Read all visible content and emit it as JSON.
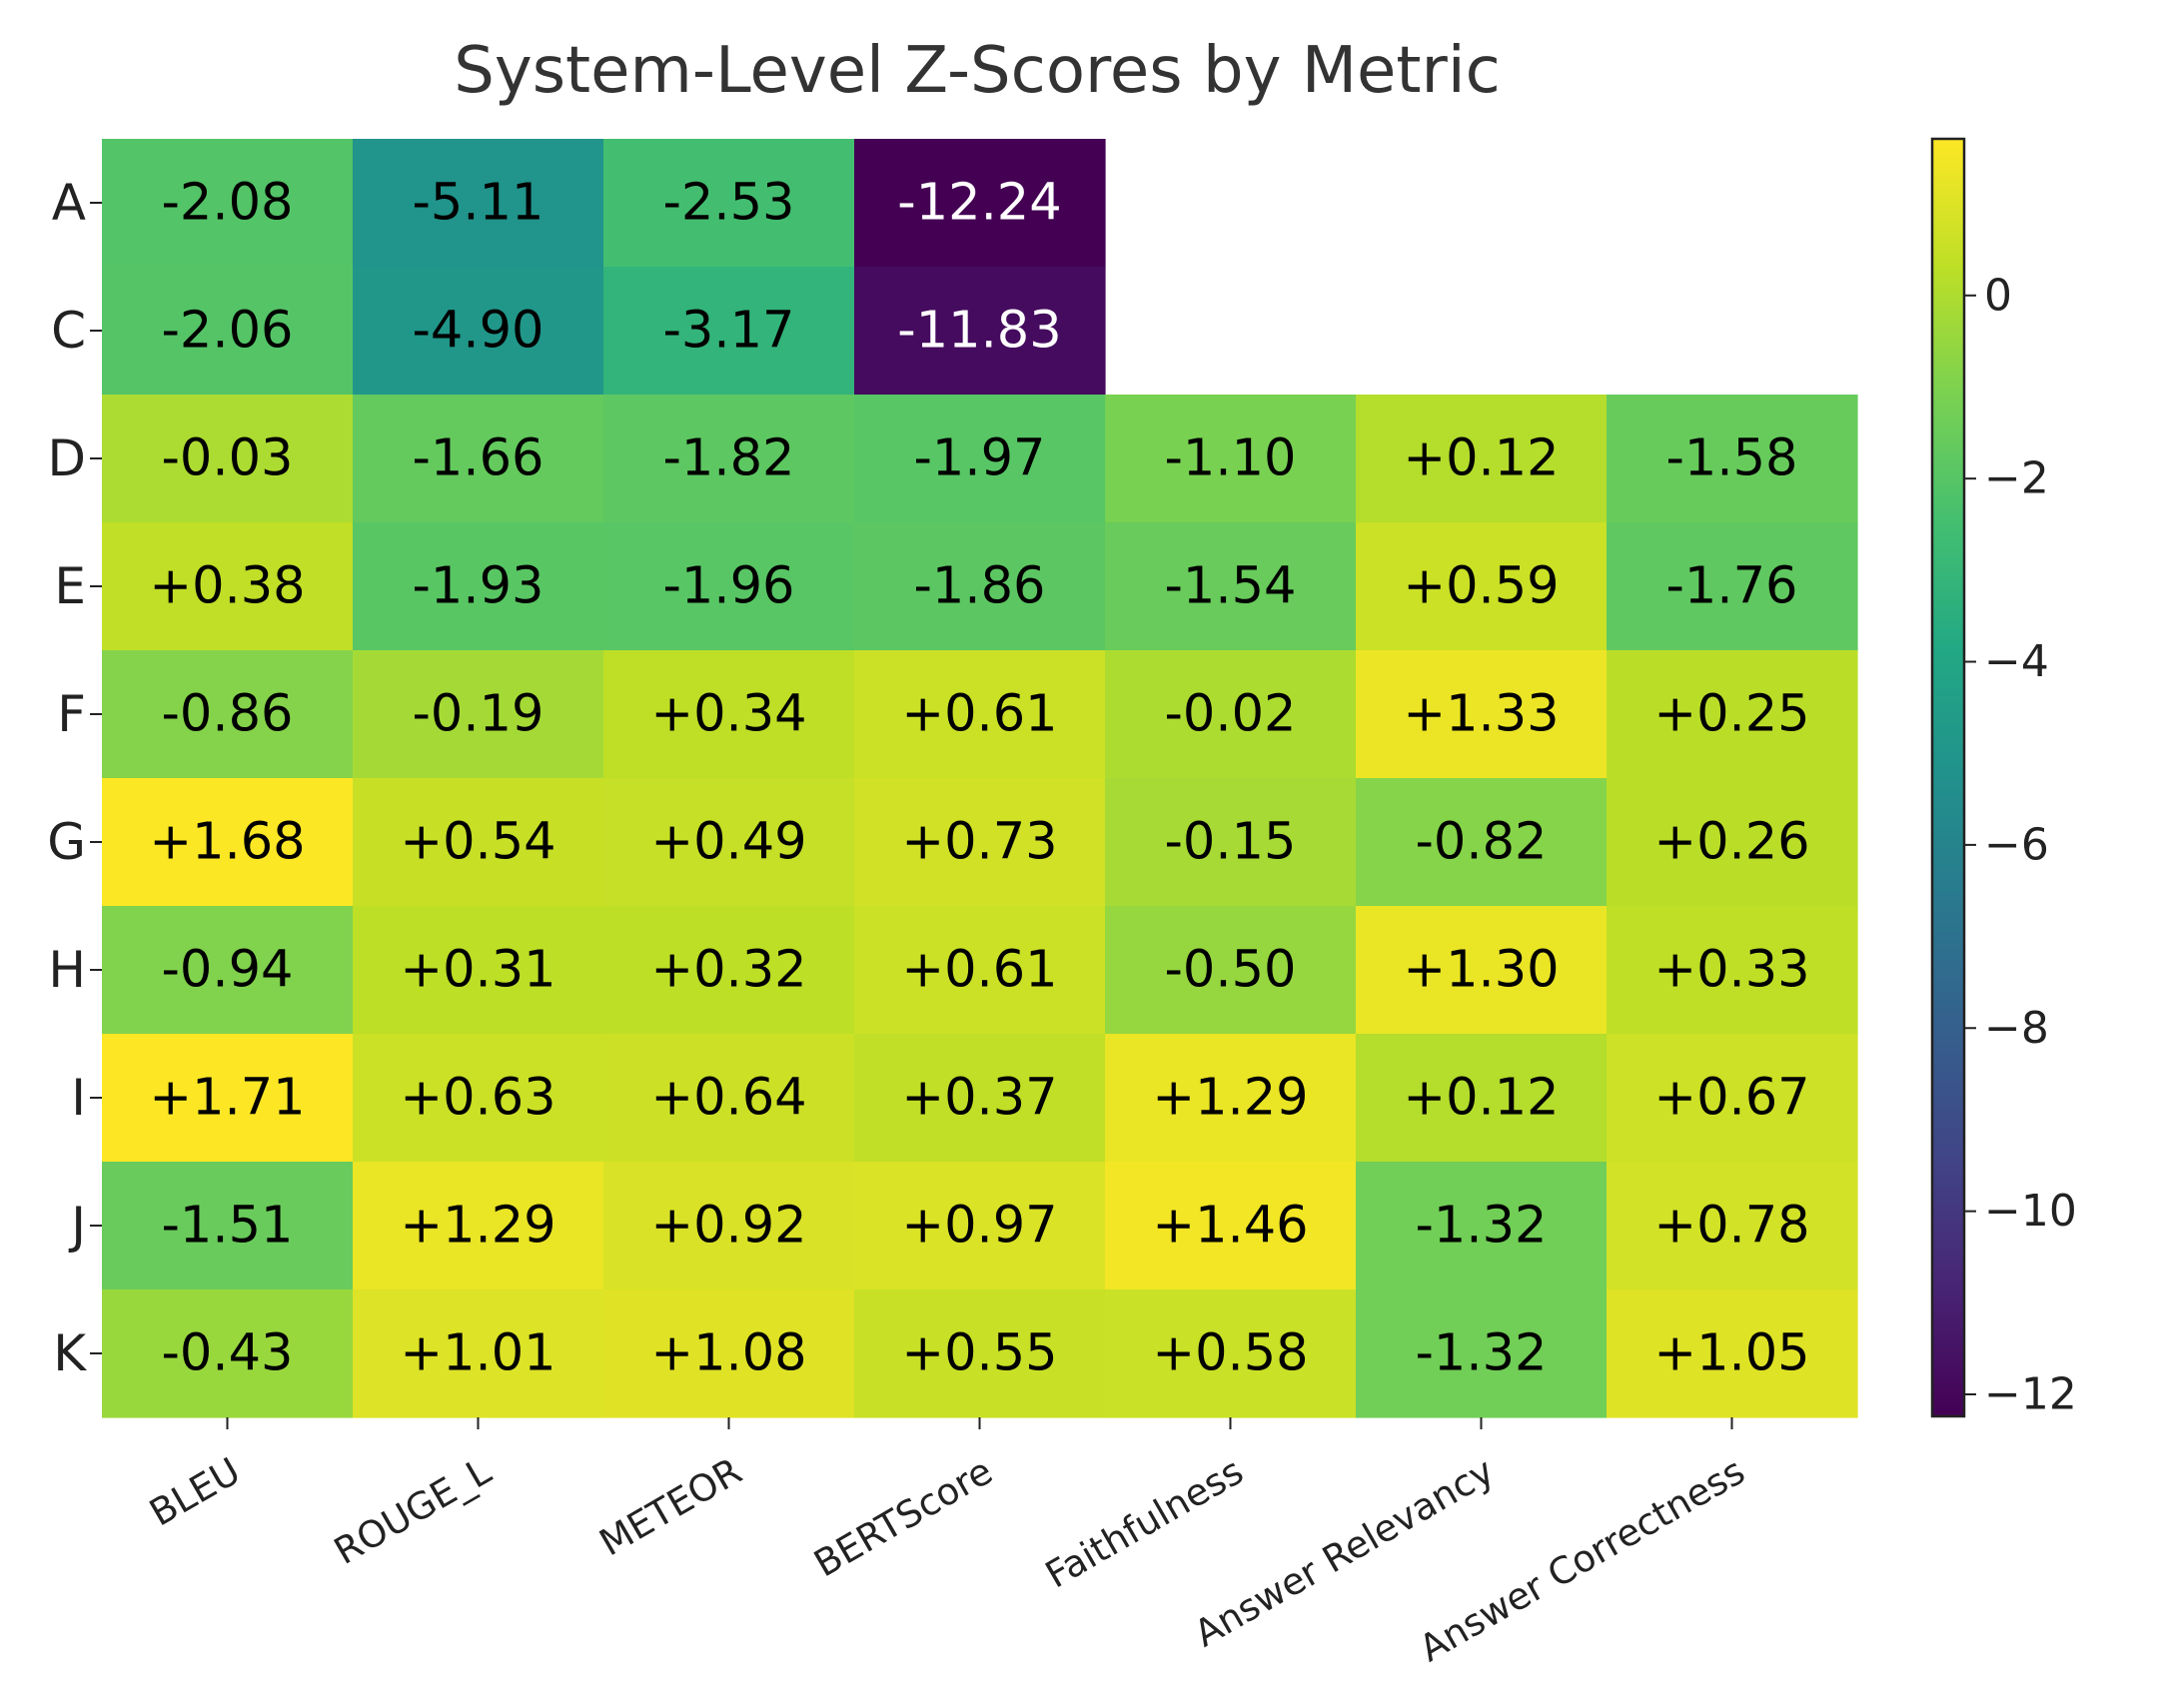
{
  "chart_data": {
    "type": "heatmap",
    "title": "System-Level Z-Scores by Metric",
    "xlabel": "",
    "ylabel": "",
    "colormap": "viridis",
    "columns": [
      "BLEU",
      "ROUGE_L",
      "METEOR",
      "BERTScore",
      "Faithfulness",
      "Answer Relevancy",
      "Answer Correctness"
    ],
    "rows": [
      "A",
      "C",
      "D",
      "E",
      "F",
      "G",
      "H",
      "I",
      "J",
      "K"
    ],
    "values": [
      [
        -2.08,
        -5.11,
        -2.53,
        -12.24,
        null,
        null,
        null
      ],
      [
        -2.06,
        -4.9,
        -3.17,
        -11.83,
        null,
        null,
        null
      ],
      [
        -0.03,
        -1.66,
        -1.82,
        -1.97,
        -1.1,
        0.12,
        -1.58
      ],
      [
        0.38,
        -1.93,
        -1.96,
        -1.86,
        -1.54,
        0.59,
        -1.76
      ],
      [
        -0.86,
        -0.19,
        0.34,
        0.61,
        -0.02,
        1.33,
        0.25
      ],
      [
        1.68,
        0.54,
        0.49,
        0.73,
        -0.15,
        -0.82,
        0.26
      ],
      [
        -0.94,
        0.31,
        0.32,
        0.61,
        -0.5,
        1.3,
        0.33
      ],
      [
        1.71,
        0.63,
        0.64,
        0.37,
        1.29,
        0.12,
        0.67
      ],
      [
        -1.51,
        1.29,
        0.92,
        0.97,
        1.46,
        -1.32,
        0.78
      ],
      [
        -0.43,
        1.01,
        1.08,
        0.55,
        0.58,
        -1.32,
        1.05
      ]
    ],
    "labels": [
      [
        "-2.08",
        "-5.11",
        "-2.53",
        "-12.24",
        "",
        "",
        ""
      ],
      [
        "-2.06",
        "-4.90",
        "-3.17",
        "-11.83",
        "",
        "",
        ""
      ],
      [
        "-0.03",
        "-1.66",
        "-1.82",
        "-1.97",
        "-1.10",
        "+0.12",
        "-1.58"
      ],
      [
        "+0.38",
        "-1.93",
        "-1.96",
        "-1.86",
        "-1.54",
        "+0.59",
        "-1.76"
      ],
      [
        "-0.86",
        "-0.19",
        "+0.34",
        "+0.61",
        "-0.02",
        "+1.33",
        "+0.25"
      ],
      [
        "+1.68",
        "+0.54",
        "+0.49",
        "+0.73",
        "-0.15",
        "-0.82",
        "+0.26"
      ],
      [
        "-0.94",
        "+0.31",
        "+0.32",
        "+0.61",
        "-0.50",
        "+1.30",
        "+0.33"
      ],
      [
        "+1.71",
        "+0.63",
        "+0.64",
        "+0.37",
        "+1.29",
        "+0.12",
        "+0.67"
      ],
      [
        "-1.51",
        "+1.29",
        "+0.92",
        "+0.97",
        "+1.46",
        "-1.32",
        "+0.78"
      ],
      [
        "-0.43",
        "+1.01",
        "+1.08",
        "+0.55",
        "+0.58",
        "-1.32",
        "+1.05"
      ]
    ],
    "colorbar": {
      "min": -12.24,
      "max": 1.71,
      "ticks": [
        0,
        -2,
        -4,
        -6,
        -8,
        -10,
        -12
      ],
      "tick_labels": [
        "0",
        "−2",
        "−4",
        "−6",
        "−8",
        "−10",
        "−12"
      ]
    }
  }
}
